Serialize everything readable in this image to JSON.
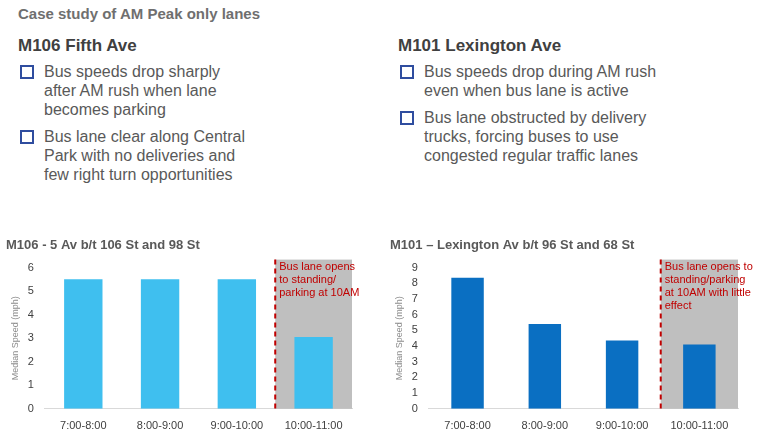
{
  "title": "Case study of AM Peak only lanes",
  "panels": [
    {
      "heading": "M106 Fifth Ave",
      "bullets": [
        "Bus speeds drop sharply after AM rush when lane becomes parking",
        "Bus lane clear along Central Park with no deliveries and few right turn opportunities"
      ]
    },
    {
      "heading": "M101 Lexington Ave",
      "bullets": [
        "Bus speeds drop during AM rush even when bus lane is active",
        "Bus lane obstructed by delivery trucks, forcing buses to use congested regular traffic lanes"
      ]
    }
  ],
  "chart_data": [
    {
      "type": "bar",
      "title": "M106 - 5 Av b/t 106 St and 98 St",
      "categories": [
        "7:00-8:00",
        "8:00-9:00",
        "9:00-10:00",
        "10:00-11:00"
      ],
      "values": [
        5.5,
        5.5,
        5.5,
        3.05
      ],
      "color": "#3fbfef",
      "y_label": "Median Speed (mph)",
      "ylim": [
        0,
        6
      ],
      "yticks": [
        0,
        1,
        2,
        3,
        4,
        5,
        6
      ],
      "grid": false,
      "annotation": [
        "Bus lane opens",
        "to standing/",
        "parking at 10AM"
      ]
    },
    {
      "type": "bar",
      "title": "M101 – Lexington Av b/t 96 St and 68 St",
      "categories": [
        "7:00-8:00",
        "8:00-9:00",
        "9:00-10:00",
        "10:00-11:00"
      ],
      "values": [
        8.35,
        5.4,
        4.35,
        4.1
      ],
      "color": "#0a6fc2",
      "y_label": "Median Speed (mph)",
      "ylim": [
        0,
        9
      ],
      "yticks": [
        0,
        1,
        2,
        3,
        4,
        5,
        6,
        7,
        8,
        9
      ],
      "grid": false,
      "annotation": [
        "Bus lane opens to",
        "standing/parking",
        "at 10AM with little",
        "effect"
      ]
    }
  ]
}
